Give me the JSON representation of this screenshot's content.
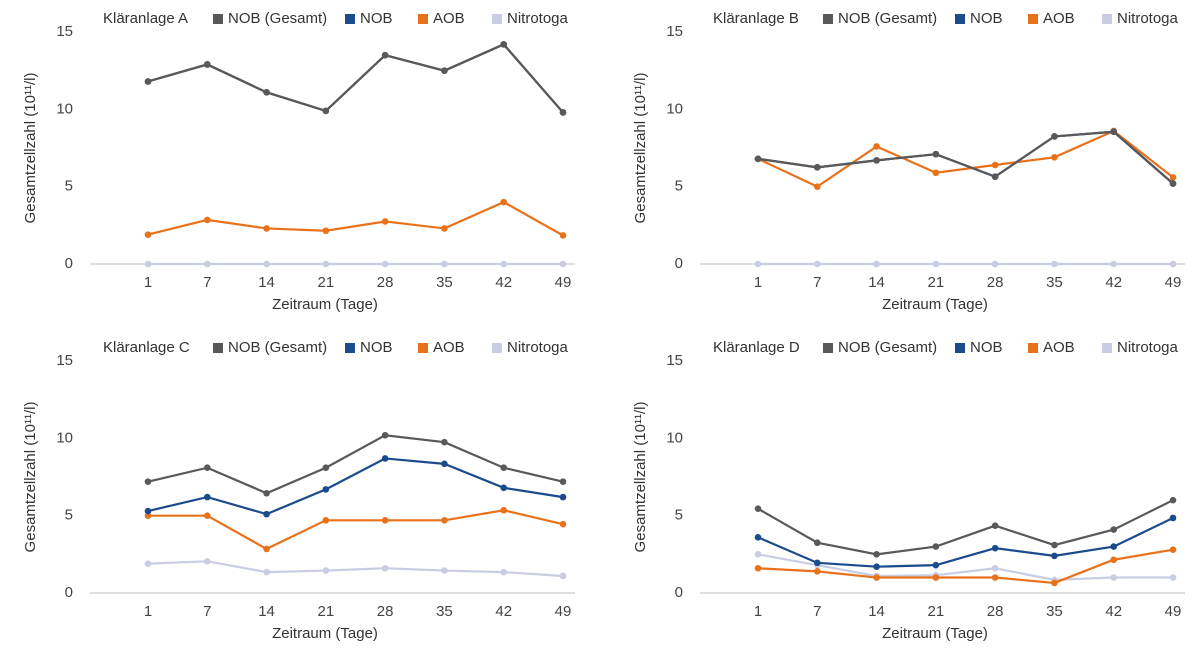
{
  "chart_data": [
    {
      "type": "line",
      "title": "Kläranlage A",
      "ylabel": "Gesamtzellzahl (10¹¹/l)",
      "xlabel": "Zeitraum (Tage)",
      "categories": [
        "1",
        "7",
        "14",
        "21",
        "28",
        "35",
        "42",
        "49"
      ],
      "ylim": [
        0,
        15
      ],
      "yticks": [
        0,
        5,
        10,
        15
      ],
      "series": [
        {
          "name": "NOB (Gesamt)",
          "color": "#595959",
          "values": [
            11.8,
            12.9,
            11.1,
            9.9,
            13.5,
            12.5,
            14.2,
            9.8
          ]
        },
        {
          "name": "NOB",
          "color": "#1a4b8c",
          "values": [
            11.8,
            12.9,
            11.1,
            9.9,
            13.5,
            12.5,
            14.2,
            9.8
          ]
        },
        {
          "name": "AOB",
          "color": "#e8711a",
          "values": [
            1.9,
            2.85,
            2.3,
            2.15,
            2.75,
            2.3,
            4.0,
            1.85
          ]
        },
        {
          "name": "Nitrotoga",
          "color": "#c9cde3",
          "values": [
            0,
            0,
            0,
            0,
            0,
            0,
            0,
            0
          ]
        }
      ]
    },
    {
      "type": "line",
      "title": "Kläranlage B",
      "ylabel": "Gesamtzellzahl (10¹¹/l)",
      "xlabel": "Zeitraum (Tage)",
      "categories": [
        "1",
        "7",
        "14",
        "21",
        "28",
        "35",
        "42",
        "49"
      ],
      "ylim": [
        0,
        15
      ],
      "yticks": [
        0,
        5,
        10,
        15
      ],
      "series": [
        {
          "name": "NOB (Gesamt)",
          "color": "#595959",
          "values": [
            6.8,
            6.25,
            6.7,
            7.1,
            5.65,
            8.25,
            8.55,
            5.2
          ]
        },
        {
          "name": "NOB",
          "color": "#1a4b8c",
          "values": [
            6.8,
            6.25,
            6.7,
            7.1,
            5.65,
            8.25,
            8.55,
            5.2
          ]
        },
        {
          "name": "AOB",
          "color": "#e8711a",
          "values": [
            6.8,
            5.0,
            7.6,
            5.9,
            6.4,
            6.9,
            8.6,
            5.6
          ]
        },
        {
          "name": "Nitrotoga",
          "color": "#c9cde3",
          "values": [
            0,
            0,
            0,
            0,
            0,
            0,
            0,
            0
          ]
        }
      ]
    },
    {
      "type": "line",
      "title": "Kläranlage C",
      "ylabel": "Gesamtzellzahl (10¹¹/l)",
      "xlabel": "Zeitraum (Tage)",
      "categories": [
        "1",
        "7",
        "14",
        "21",
        "28",
        "35",
        "42",
        "49"
      ],
      "ylim": [
        0,
        15
      ],
      "yticks": [
        0,
        5,
        10,
        15
      ],
      "series": [
        {
          "name": "NOB (Gesamt)",
          "color": "#595959",
          "values": [
            7.2,
            8.1,
            6.45,
            8.1,
            10.2,
            9.75,
            8.1,
            7.2
          ]
        },
        {
          "name": "NOB",
          "color": "#1a4b8c",
          "values": [
            5.3,
            6.2,
            5.1,
            6.7,
            8.7,
            8.35,
            6.8,
            6.2
          ]
        },
        {
          "name": "AOB",
          "color": "#e8711a",
          "values": [
            5.0,
            5.0,
            2.85,
            4.7,
            4.7,
            4.7,
            5.35,
            4.45
          ]
        },
        {
          "name": "Nitrotoga",
          "color": "#c9cde3",
          "values": [
            1.9,
            2.05,
            1.35,
            1.45,
            1.6,
            1.45,
            1.35,
            1.1
          ]
        }
      ]
    },
    {
      "type": "line",
      "title": "Kläranlage D",
      "ylabel": "Gesamtzellzahl (10¹¹/l)",
      "xlabel": "Zeitraum (Tage)",
      "categories": [
        "1",
        "7",
        "14",
        "21",
        "28",
        "35",
        "42",
        "49"
      ],
      "ylim": [
        0,
        15
      ],
      "yticks": [
        0,
        5,
        10,
        15
      ],
      "series": [
        {
          "name": "NOB (Gesamt)",
          "color": "#595959",
          "values": [
            5.45,
            3.25,
            2.5,
            3.0,
            4.35,
            3.1,
            4.1,
            6.0
          ]
        },
        {
          "name": "NOB",
          "color": "#1a4b8c",
          "values": [
            3.6,
            1.95,
            1.7,
            1.8,
            2.9,
            2.4,
            3.0,
            4.85
          ]
        },
        {
          "name": "AOB",
          "color": "#e8711a",
          "values": [
            1.6,
            1.4,
            1.0,
            1.0,
            1.0,
            0.65,
            2.15,
            2.8
          ]
        },
        {
          "name": "Nitrotoga",
          "color": "#c9cde3",
          "values": [
            2.5,
            1.8,
            1.1,
            1.15,
            1.6,
            0.85,
            1.0,
            1.0
          ]
        }
      ]
    }
  ]
}
